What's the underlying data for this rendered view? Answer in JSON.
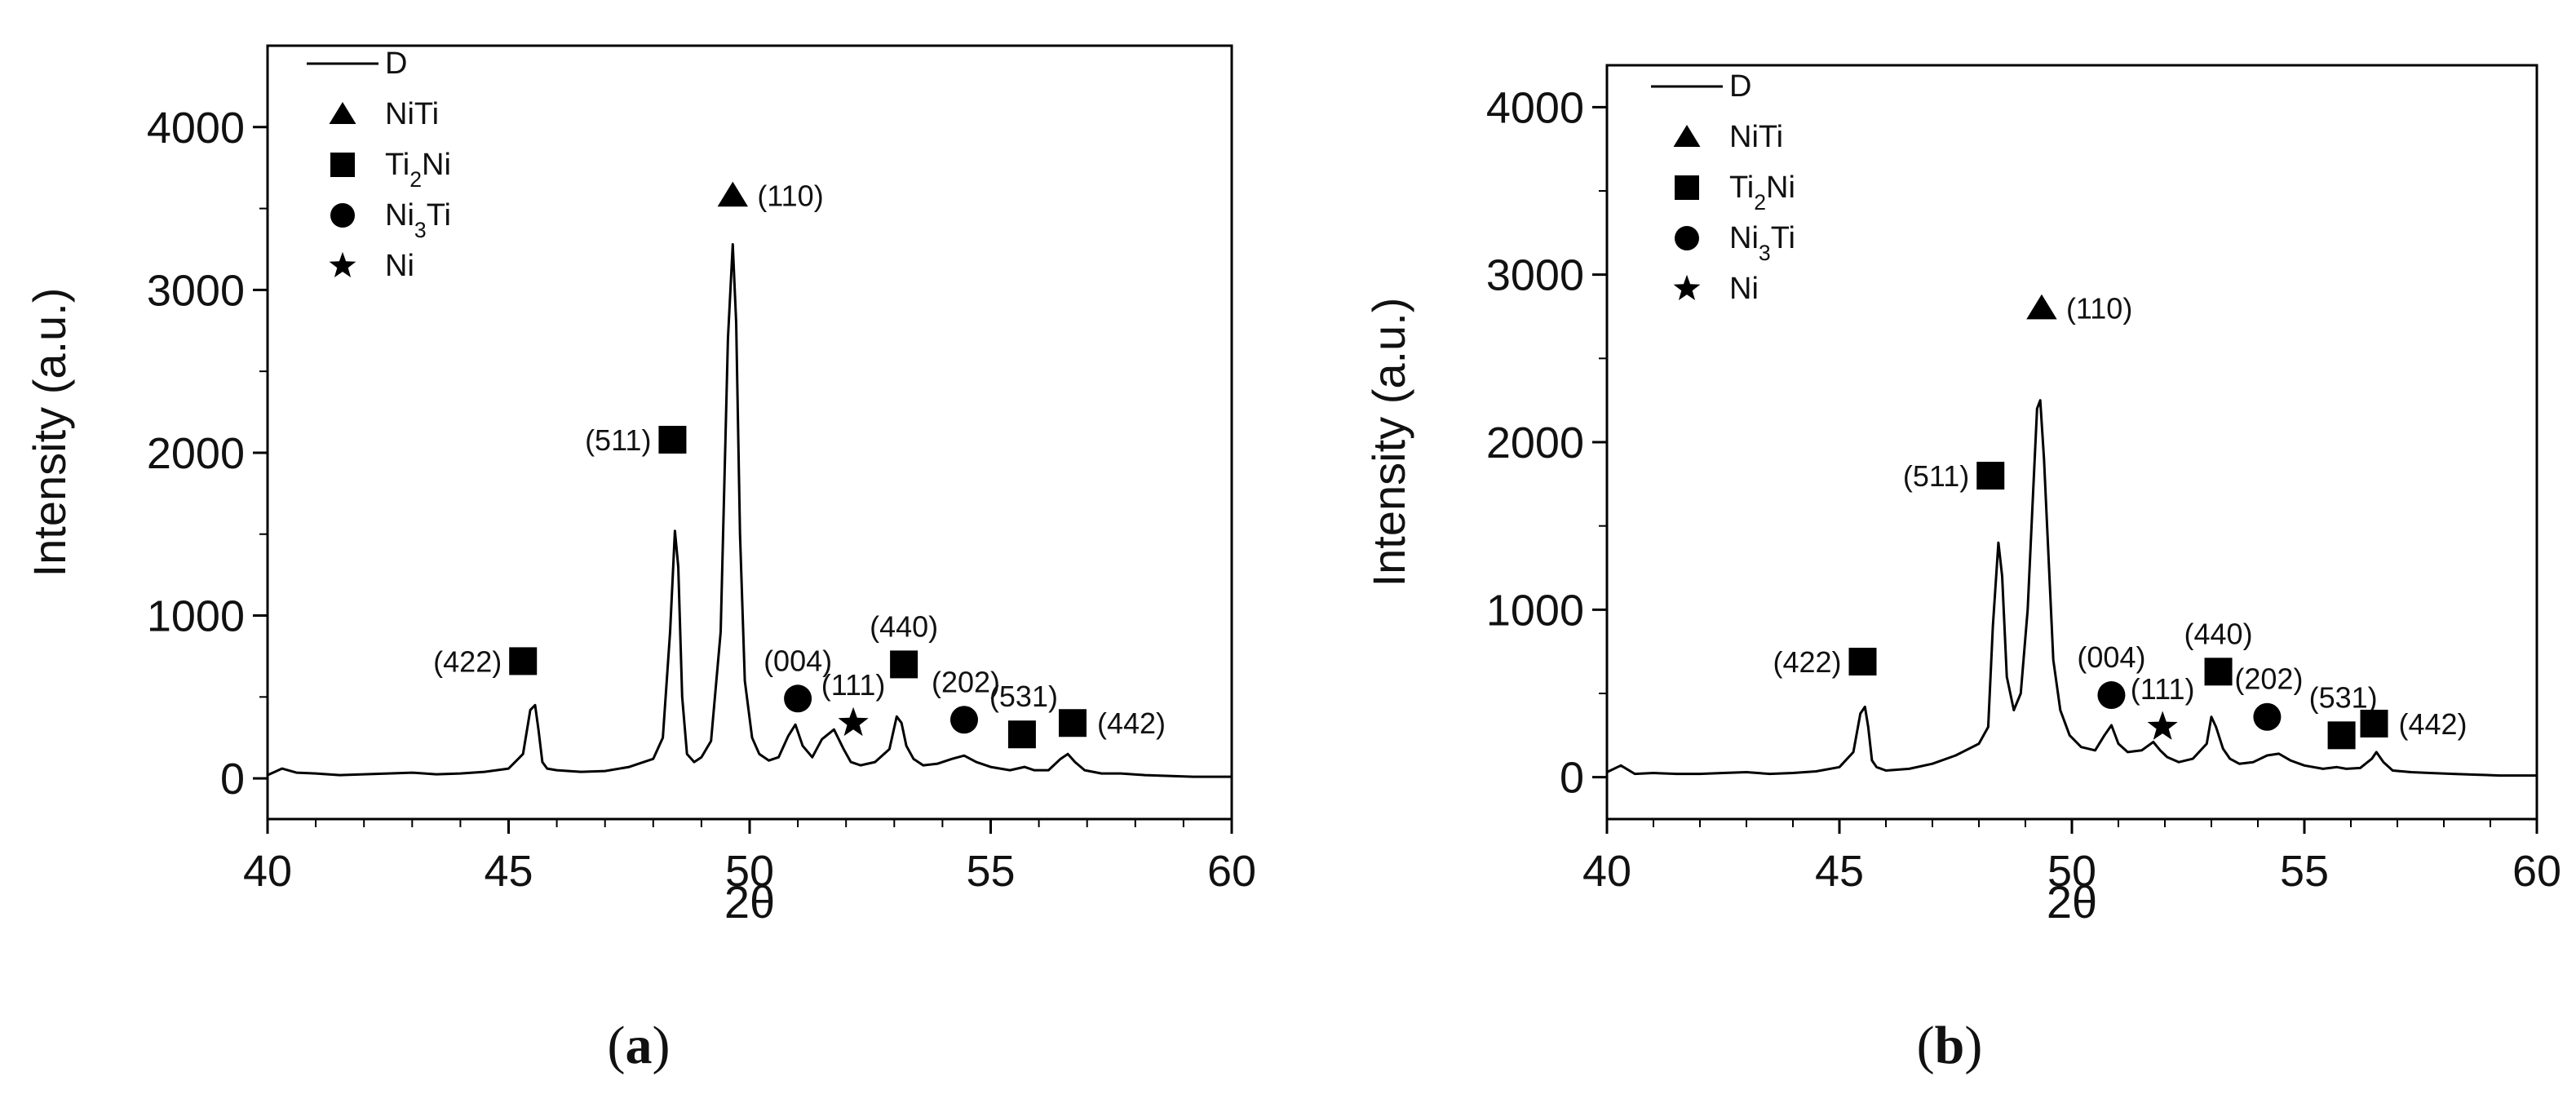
{
  "charts": [
    {
      "panel_label": "(a)",
      "chart_data": {
        "type": "line",
        "xlabel": "2θ",
        "ylabel": "Intensity (a.u.)",
        "xlim": [
          40,
          60
        ],
        "ylim": [
          -250,
          4500
        ],
        "xticks": [
          40,
          45,
          50,
          55,
          60
        ],
        "xtick_labels": [
          "40",
          "45",
          "50",
          "55",
          "60"
        ],
        "yticks": [
          0,
          1000,
          2000,
          3000,
          4000
        ],
        "ytick_labels": [
          "0",
          "1000",
          "2000",
          "3000",
          "4000"
        ],
        "grid": false,
        "legend_position": "top-left",
        "series": [
          {
            "name": "D",
            "x": [
              40.0,
              40.3,
              40.6,
              41.0,
              41.5,
              42.0,
              42.5,
              43.0,
              43.5,
              44.0,
              44.5,
              45.0,
              45.3,
              45.45,
              45.55,
              45.62,
              45.7,
              45.8,
              46.0,
              46.5,
              47.0,
              47.5,
              48.0,
              48.2,
              48.35,
              48.45,
              48.52,
              48.6,
              48.7,
              48.85,
              49.0,
              49.2,
              49.4,
              49.55,
              49.65,
              49.72,
              49.8,
              49.9,
              50.05,
              50.2,
              50.4,
              50.6,
              50.8,
              50.95,
              51.1,
              51.3,
              51.5,
              51.75,
              51.95,
              52.1,
              52.3,
              52.6,
              52.9,
              53.05,
              53.15,
              53.25,
              53.4,
              53.6,
              53.9,
              54.2,
              54.45,
              54.7,
              55.0,
              55.4,
              55.7,
              55.9,
              56.2,
              56.45,
              56.6,
              56.75,
              56.95,
              57.3,
              57.7,
              58.2,
              58.7,
              59.2,
              60.0
            ],
            "y": [
              20,
              60,
              35,
              30,
              20,
              25,
              30,
              35,
              25,
              30,
              40,
              60,
              150,
              420,
              450,
              300,
              100,
              60,
              50,
              40,
              45,
              70,
              120,
              250,
              900,
              1520,
              1300,
              500,
              150,
              100,
              130,
              230,
              900,
              2700,
              3280,
              2800,
              1500,
              600,
              250,
              150,
              110,
              130,
              260,
              330,
              200,
              130,
              240,
              300,
              180,
              100,
              80,
              100,
              180,
              380,
              340,
              200,
              120,
              80,
              90,
              120,
              140,
              100,
              70,
              50,
              70,
              50,
              50,
              120,
              150,
              100,
              50,
              30,
              30,
              20,
              15,
              10,
              10
            ]
          }
        ],
        "legend": [
          {
            "label": "D",
            "marker": "line"
          },
          {
            "label": "NiTi",
            "marker": "triangle"
          },
          {
            "label": "Ti₂Ni",
            "marker": "square"
          },
          {
            "label": "Ni₃Ti",
            "marker": "circle"
          },
          {
            "label": "Ni",
            "marker": "star"
          }
        ],
        "annotations": [
          {
            "label": "(110)",
            "marker": "triangle",
            "x": 49.65,
            "y": 3580,
            "side": "right"
          },
          {
            "label": "(511)",
            "marker": "square",
            "x": 48.4,
            "y": 2080,
            "side": "left"
          },
          {
            "label": "(422)",
            "marker": "square",
            "x": 45.3,
            "y": 720,
            "side": "left"
          },
          {
            "label": "(004)",
            "marker": "circle",
            "x": 51.0,
            "y": 490,
            "side": "above"
          },
          {
            "label": "(111)",
            "marker": "star",
            "x": 52.15,
            "y": 340,
            "side": "above"
          },
          {
            "label": "(440)",
            "marker": "square",
            "x": 53.2,
            "y": 700,
            "side": "above"
          },
          {
            "label": "(202)",
            "marker": "circle",
            "x": 54.45,
            "y": 360,
            "side": "above-right"
          },
          {
            "label": "(531)",
            "marker": "square",
            "x": 55.65,
            "y": 270,
            "side": "above-right"
          },
          {
            "label": "(442)",
            "marker": "square",
            "x": 56.7,
            "y": 340,
            "side": "right"
          }
        ]
      }
    },
    {
      "panel_label": "(b)",
      "chart_data": {
        "type": "line",
        "xlabel": "2θ",
        "ylabel": "Intensity (a.u.)",
        "xlim": [
          40,
          60
        ],
        "ylim": [
          -250,
          4250
        ],
        "xticks": [
          40,
          45,
          50,
          55,
          60
        ],
        "xtick_labels": [
          "40",
          "45",
          "50",
          "55",
          "60"
        ],
        "yticks": [
          0,
          1000,
          2000,
          3000,
          4000
        ],
        "ytick_labels": [
          "0",
          "1000",
          "2000",
          "3000",
          "4000"
        ],
        "grid": false,
        "legend_position": "top-left",
        "series": [
          {
            "name": "D",
            "x": [
              40.0,
              40.3,
              40.6,
              41.0,
              41.5,
              42.0,
              42.5,
              43.0,
              43.5,
              44.0,
              44.5,
              45.0,
              45.3,
              45.45,
              45.55,
              45.62,
              45.7,
              45.8,
              46.0,
              46.5,
              47.0,
              47.5,
              48.0,
              48.2,
              48.3,
              48.42,
              48.5,
              48.6,
              48.75,
              48.9,
              49.05,
              49.15,
              49.25,
              49.32,
              49.4,
              49.5,
              49.6,
              49.75,
              49.95,
              50.2,
              50.5,
              50.7,
              50.85,
              51.0,
              51.2,
              51.5,
              51.75,
              51.9,
              52.05,
              52.3,
              52.6,
              52.9,
              53.0,
              53.1,
              53.25,
              53.4,
              53.6,
              53.9,
              54.2,
              54.45,
              54.7,
              55.0,
              55.4,
              55.7,
              55.9,
              56.2,
              56.45,
              56.55,
              56.7,
              56.9,
              57.3,
              57.7,
              58.2,
              58.7,
              59.2,
              60.0
            ],
            "y": [
              30,
              70,
              20,
              25,
              20,
              20,
              25,
              30,
              20,
              25,
              35,
              60,
              150,
              380,
              420,
              300,
              100,
              60,
              40,
              50,
              80,
              130,
              200,
              300,
              900,
              1400,
              1200,
              600,
              400,
              500,
              1000,
              1600,
              2200,
              2250,
              1900,
              1300,
              700,
              400,
              250,
              180,
              160,
              250,
              310,
              200,
              150,
              160,
              210,
              160,
              120,
              90,
              110,
              200,
              360,
              300,
              170,
              110,
              80,
              90,
              130,
              140,
              100,
              70,
              50,
              60,
              50,
              55,
              110,
              150,
              90,
              40,
              30,
              25,
              20,
              15,
              10,
              10
            ]
          }
        ],
        "legend": [
          {
            "label": "D",
            "marker": "line"
          },
          {
            "label": "NiTi",
            "marker": "triangle"
          },
          {
            "label": "Ti₂Ni",
            "marker": "square"
          },
          {
            "label": "Ni₃Ti",
            "marker": "circle"
          },
          {
            "label": "Ni",
            "marker": "star"
          }
        ],
        "annotations": [
          {
            "label": "(110)",
            "marker": "triangle",
            "x": 49.35,
            "y": 2800,
            "side": "right"
          },
          {
            "label": "(511)",
            "marker": "square",
            "x": 48.25,
            "y": 1800,
            "side": "left"
          },
          {
            "label": "(422)",
            "marker": "square",
            "x": 45.5,
            "y": 690,
            "side": "left"
          },
          {
            "label": "(004)",
            "marker": "circle",
            "x": 50.85,
            "y": 490,
            "side": "above"
          },
          {
            "label": "(111)",
            "marker": "star",
            "x": 51.95,
            "y": 300,
            "side": "above"
          },
          {
            "label": "(440)",
            "marker": "square",
            "x": 53.15,
            "y": 630,
            "side": "above"
          },
          {
            "label": "(202)",
            "marker": "circle",
            "x": 54.2,
            "y": 360,
            "side": "above-right"
          },
          {
            "label": "(531)",
            "marker": "square",
            "x": 55.8,
            "y": 250,
            "side": "above-right"
          },
          {
            "label": "(442)",
            "marker": "square",
            "x": 56.5,
            "y": 320,
            "side": "right"
          }
        ]
      }
    }
  ]
}
